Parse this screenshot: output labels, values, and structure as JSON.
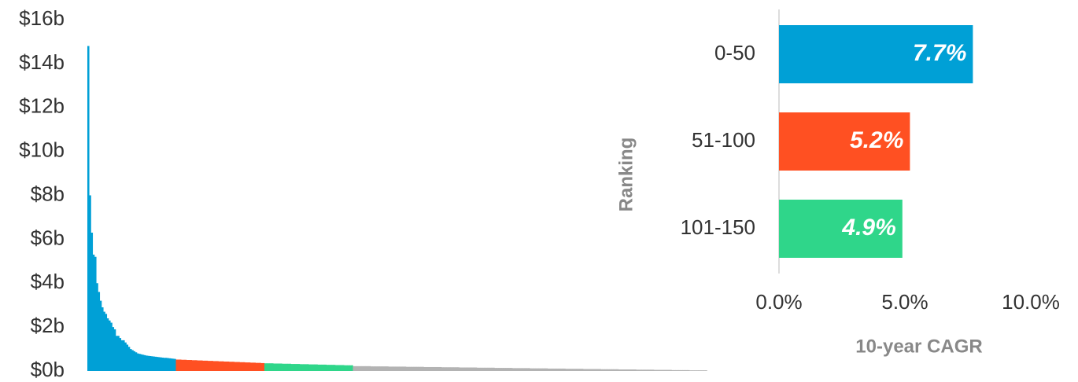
{
  "chart_data": [
    {
      "type": "bar",
      "ylim": [
        0,
        16
      ],
      "yticks": [
        {
          "value": 0,
          "label": "$0b"
        },
        {
          "value": 2,
          "label": "$2b"
        },
        {
          "value": 4,
          "label": "$4b"
        },
        {
          "value": 6,
          "label": "$6b"
        },
        {
          "value": 8,
          "label": "$8b"
        },
        {
          "value": 10,
          "label": "$10b"
        },
        {
          "value": 12,
          "label": "$12b"
        },
        {
          "value": 14,
          "label": "$14b"
        },
        {
          "value": 16,
          "label": "$16b"
        }
      ],
      "series": [
        {
          "color": "#00a0d6",
          "values": [
            14.8,
            8,
            6.3,
            5.3,
            5.2,
            4.0,
            3.6,
            3.2,
            2.9,
            2.7,
            2.6,
            2.4,
            2.3,
            2.2,
            2.0,
            1.9,
            1.6,
            1.6,
            1.5,
            1.4,
            1.4,
            1.3,
            1.2,
            1.1,
            1.0,
            0.95,
            0.9,
            0.85,
            0.8,
            0.78,
            0.76,
            0.74,
            0.72,
            0.7,
            0.69,
            0.68,
            0.67,
            0.66,
            0.65,
            0.64,
            0.63,
            0.62,
            0.61,
            0.6,
            0.6,
            0.59,
            0.58,
            0.57,
            0.56,
            0.55
          ]
        },
        {
          "color": "#ff5022",
          "values": [
            0.52,
            0.52,
            0.52,
            0.51,
            0.51,
            0.51,
            0.5,
            0.5,
            0.5,
            0.49,
            0.49,
            0.49,
            0.48,
            0.48,
            0.48,
            0.47,
            0.47,
            0.47,
            0.46,
            0.46,
            0.46,
            0.45,
            0.45,
            0.45,
            0.44,
            0.44,
            0.44,
            0.43,
            0.43,
            0.43,
            0.42,
            0.42,
            0.42,
            0.41,
            0.41,
            0.41,
            0.4,
            0.4,
            0.4,
            0.39,
            0.39,
            0.39,
            0.38,
            0.38,
            0.38,
            0.37,
            0.37,
            0.37,
            0.36,
            0.36
          ]
        },
        {
          "color": "#2fd68a",
          "values": [
            0.35,
            0.35,
            0.35,
            0.35,
            0.35,
            0.34,
            0.34,
            0.34,
            0.34,
            0.34,
            0.33,
            0.33,
            0.33,
            0.33,
            0.33,
            0.32,
            0.32,
            0.32,
            0.32,
            0.32,
            0.31,
            0.31,
            0.31,
            0.31,
            0.31,
            0.3,
            0.3,
            0.3,
            0.3,
            0.3,
            0.29,
            0.29,
            0.29,
            0.29,
            0.29,
            0.28,
            0.28,
            0.28,
            0.28,
            0.28,
            0.27,
            0.27,
            0.27,
            0.27,
            0.27,
            0.26,
            0.26,
            0.26,
            0.26,
            0.26
          ]
        },
        {
          "color": "#b3b3b3",
          "values": [
            0.22,
            0.22,
            0.22,
            0.22,
            0.22,
            0.22,
            0.22,
            0.22,
            0.22,
            0.22,
            0.21,
            0.21,
            0.21,
            0.21,
            0.21,
            0.21,
            0.21,
            0.21,
            0.21,
            0.21,
            0.2,
            0.2,
            0.2,
            0.2,
            0.2,
            0.2,
            0.2,
            0.2,
            0.2,
            0.2,
            0.19,
            0.19,
            0.19,
            0.19,
            0.19,
            0.19,
            0.19,
            0.19,
            0.19,
            0.19,
            0.18,
            0.18,
            0.18,
            0.18,
            0.18,
            0.18,
            0.18,
            0.18,
            0.18,
            0.18,
            0.17,
            0.17,
            0.17,
            0.17,
            0.17,
            0.17,
            0.17,
            0.17,
            0.17,
            0.17,
            0.16,
            0.16,
            0.16,
            0.16,
            0.16,
            0.16,
            0.16,
            0.16,
            0.16,
            0.16,
            0.15,
            0.15,
            0.15,
            0.15,
            0.15,
            0.15,
            0.15,
            0.15,
            0.15,
            0.15,
            0.14,
            0.14,
            0.14,
            0.14,
            0.14,
            0.14,
            0.14,
            0.14,
            0.14,
            0.14,
            0.13,
            0.13,
            0.13,
            0.13,
            0.13,
            0.13,
            0.13,
            0.13,
            0.13,
            0.13,
            0.12,
            0.12,
            0.12,
            0.12,
            0.12,
            0.12,
            0.12,
            0.12,
            0.12,
            0.12,
            0.11,
            0.11,
            0.11,
            0.11,
            0.11,
            0.11,
            0.11,
            0.11,
            0.11,
            0.11,
            0.1,
            0.1,
            0.1,
            0.1,
            0.1,
            0.1,
            0.1,
            0.1,
            0.1,
            0.1,
            0.09,
            0.09,
            0.09,
            0.09,
            0.09,
            0.09,
            0.09,
            0.09,
            0.09,
            0.09,
            0.08,
            0.08,
            0.08,
            0.08,
            0.08,
            0.08,
            0.08,
            0.08,
            0.08,
            0.08,
            0.07,
            0.07,
            0.07,
            0.07,
            0.07,
            0.07,
            0.07,
            0.07,
            0.07,
            0.07,
            0.06,
            0.06,
            0.06,
            0.06,
            0.06,
            0.06,
            0.06,
            0.06,
            0.06,
            0.06,
            0.05,
            0.05,
            0.05,
            0.05,
            0.05,
            0.05,
            0.05,
            0.05,
            0.05,
            0.05,
            0.04,
            0.04,
            0.04,
            0.04,
            0.04,
            0.04,
            0.04,
            0.04,
            0.04,
            0.04,
            0.03,
            0.03,
            0.03,
            0.03,
            0.03,
            0.03,
            0.03,
            0.03,
            0.03,
            0.03
          ]
        }
      ]
    },
    {
      "type": "hbar",
      "ylabel": "Ranking",
      "xlabel": "10-year CAGR",
      "categories": [
        "0-50",
        "51-100",
        "101-150"
      ],
      "values": [
        7.7,
        5.2,
        4.9
      ],
      "value_labels": [
        "7.7%",
        "5.2%",
        "4.9%"
      ],
      "colors": [
        "#00a0d6",
        "#ff5022",
        "#2fd68a"
      ],
      "xlim": [
        0,
        10
      ],
      "xticks": [
        {
          "value": 0,
          "label": "0.0%"
        },
        {
          "value": 5,
          "label": "5.0%"
        },
        {
          "value": 10,
          "label": "10.0%"
        }
      ]
    }
  ]
}
